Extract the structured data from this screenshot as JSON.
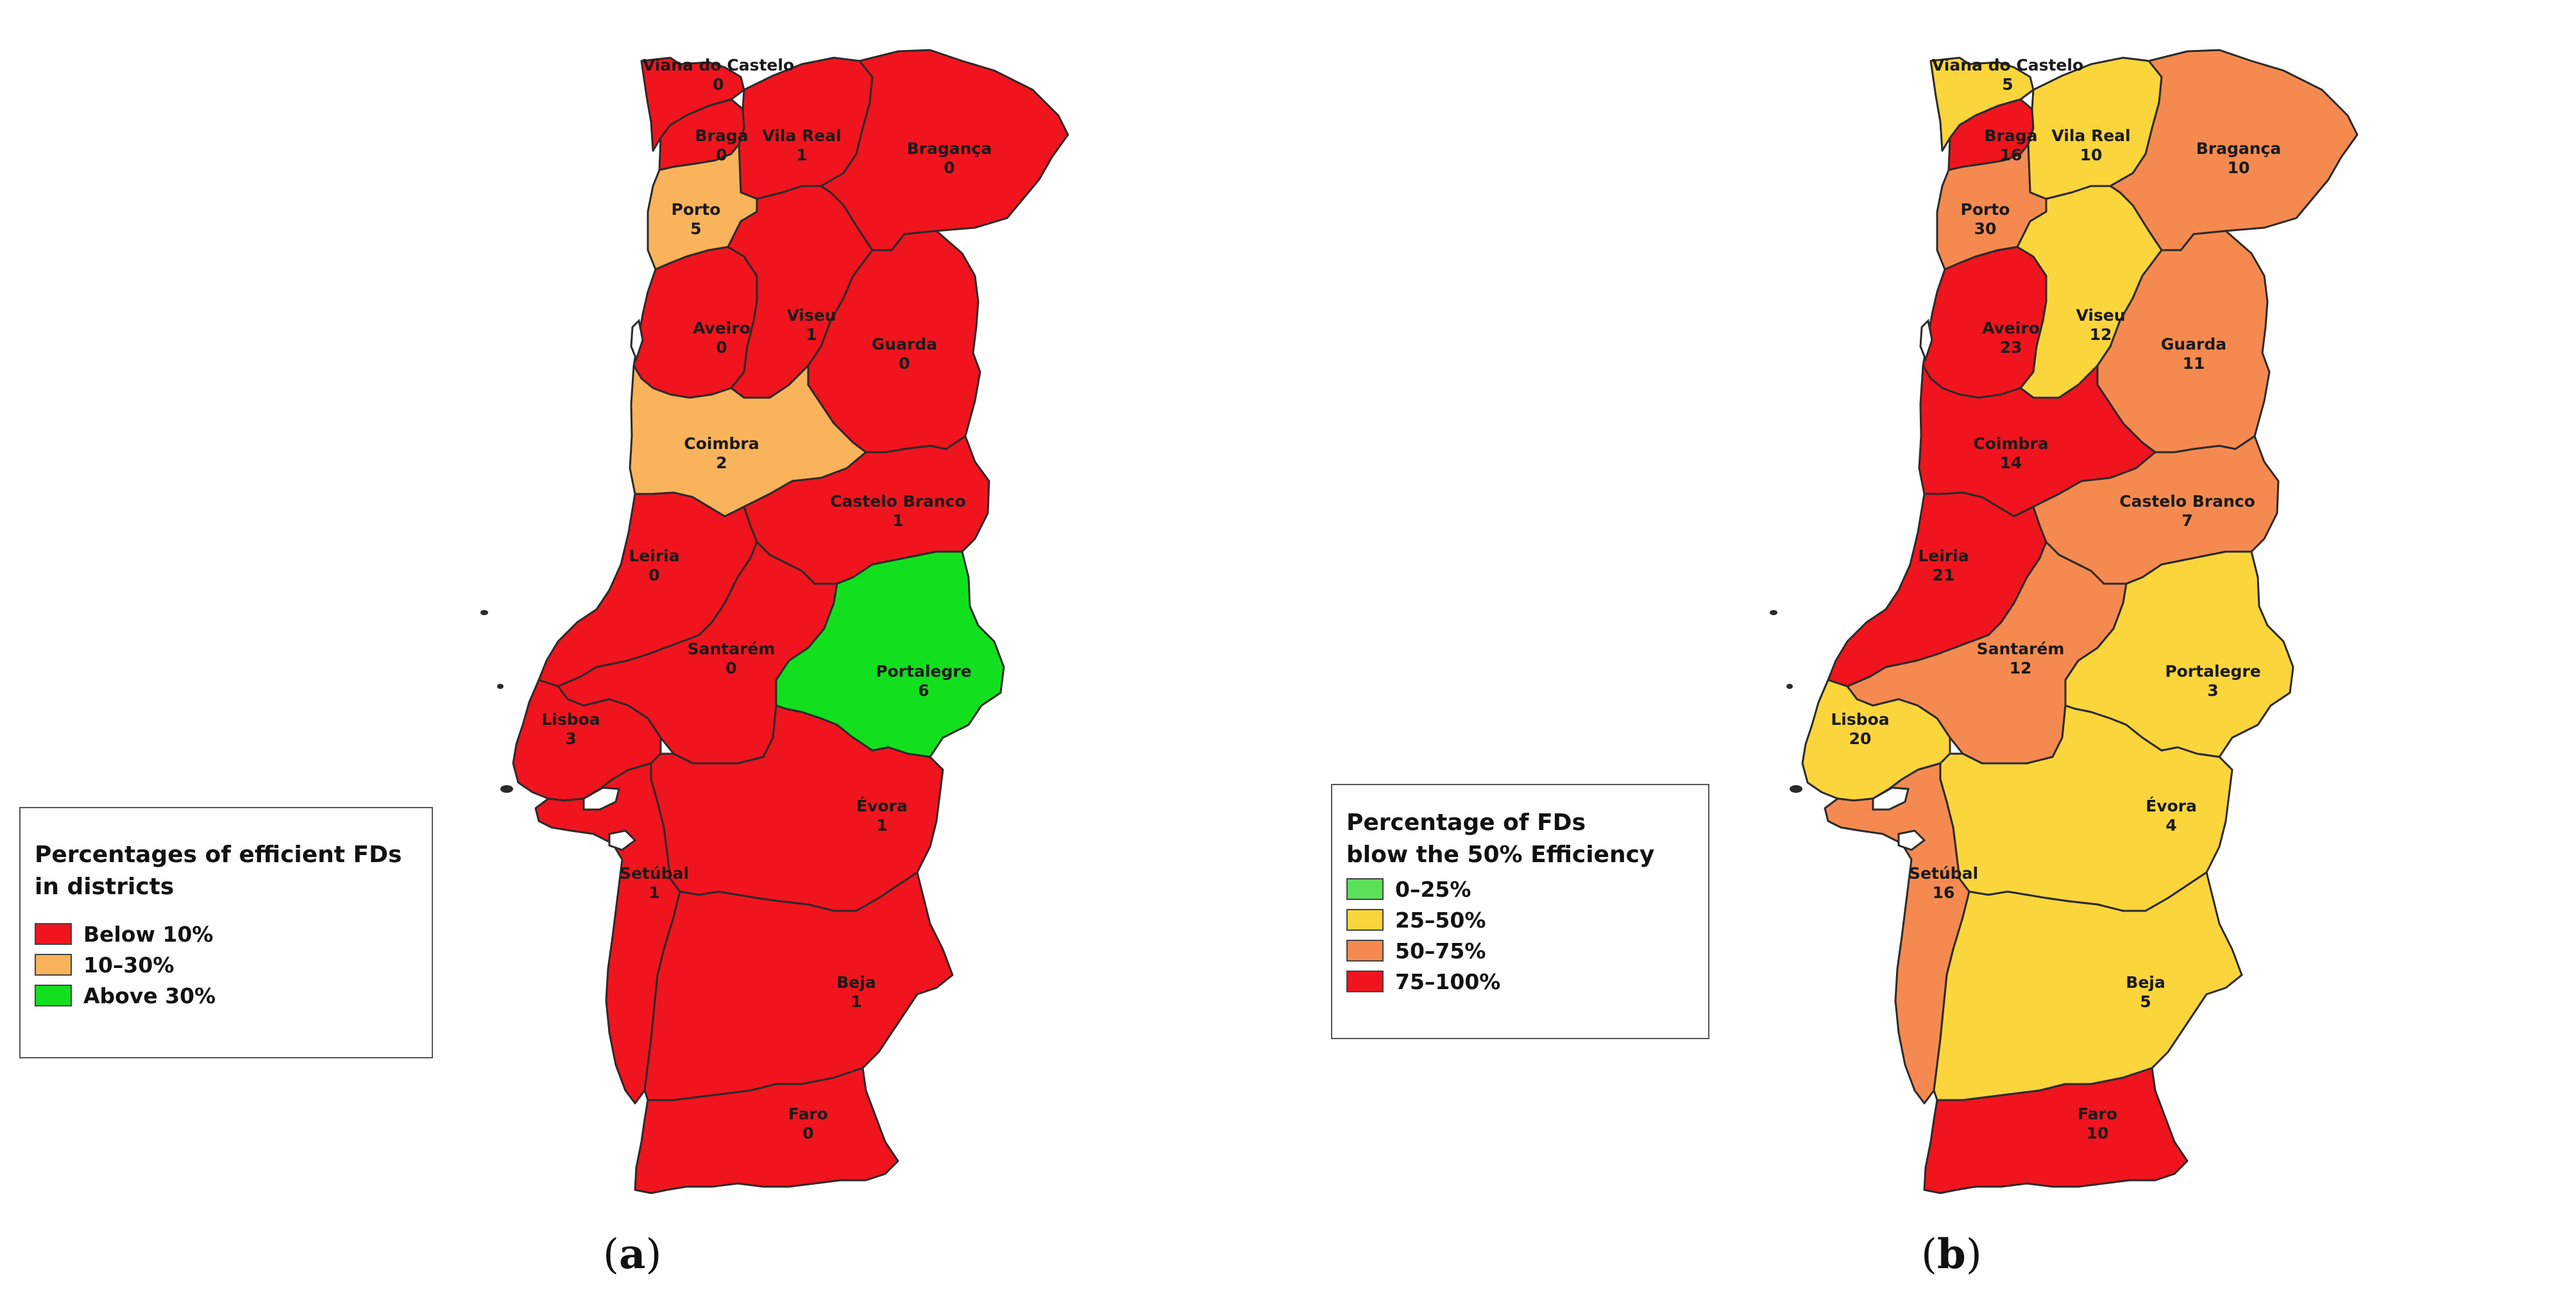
{
  "panels": [
    {
      "id": "a",
      "caption": {
        "open": "(",
        "letter": "a",
        "close": ")"
      },
      "legend": {
        "title_lines": [
          "Percentages of efficient FDs",
          "in districts"
        ],
        "items": [
          {
            "label": "Below 10%",
            "color": "#f0141e"
          },
          {
            "label": "10–30%",
            "color": "#f9b35a"
          },
          {
            "label": "Above 30%",
            "color": "#12e01e"
          }
        ]
      },
      "districts": [
        {
          "name": "Viana do Castelo",
          "value": "0",
          "color": "#f0141e"
        },
        {
          "name": "Braga",
          "value": "0",
          "color": "#f0141e"
        },
        {
          "name": "Vila Real",
          "value": "1",
          "color": "#f0141e"
        },
        {
          "name": "Bragança",
          "value": "0",
          "color": "#f0141e"
        },
        {
          "name": "Porto",
          "value": "5",
          "color": "#f9b35a"
        },
        {
          "name": "Aveiro",
          "value": "0",
          "color": "#f0141e"
        },
        {
          "name": "Viseu",
          "value": "1",
          "color": "#f0141e"
        },
        {
          "name": "Guarda",
          "value": "0",
          "color": "#f0141e"
        },
        {
          "name": "Coimbra",
          "value": "2",
          "color": "#f9b35a"
        },
        {
          "name": "Castelo Branco",
          "value": "1",
          "color": "#f0141e"
        },
        {
          "name": "Leiria",
          "value": "0",
          "color": "#f0141e"
        },
        {
          "name": "Santarém",
          "value": "0",
          "color": "#f0141e"
        },
        {
          "name": "Portalegre",
          "value": "6",
          "color": "#12e01e"
        },
        {
          "name": "Lisboa",
          "value": "3",
          "color": "#f0141e"
        },
        {
          "name": "Évora",
          "value": "1",
          "color": "#f0141e"
        },
        {
          "name": "Setúbal",
          "value": "1",
          "color": "#f0141e"
        },
        {
          "name": "Beja",
          "value": "1",
          "color": "#f0141e"
        },
        {
          "name": "Faro",
          "value": "0",
          "color": "#f0141e"
        }
      ]
    },
    {
      "id": "b",
      "caption": {
        "open": "(",
        "letter": "b",
        "close": ")"
      },
      "legend": {
        "title_lines": [
          "Percentage of FDs",
          "blow the 50% Efficiency"
        ],
        "items": [
          {
            "label": "0–25%",
            "color": "#5be05a"
          },
          {
            "label": "25–50%",
            "color": "#fad53c"
          },
          {
            "label": "50–75%",
            "color": "#f48a50"
          },
          {
            "label": "75–100%",
            "color": "#f0141e"
          }
        ]
      },
      "districts": [
        {
          "name": "Viana do Castelo",
          "value": "5",
          "color": "#fad53c"
        },
        {
          "name": "Braga",
          "value": "16",
          "color": "#f0141e"
        },
        {
          "name": "Vila Real",
          "value": "10",
          "color": "#fad53c"
        },
        {
          "name": "Bragança",
          "value": "10",
          "color": "#f48a50"
        },
        {
          "name": "Porto",
          "value": "30",
          "color": "#f48a50"
        },
        {
          "name": "Aveiro",
          "value": "23",
          "color": "#f0141e"
        },
        {
          "name": "Viseu",
          "value": "12",
          "color": "#fad53c"
        },
        {
          "name": "Guarda",
          "value": "11",
          "color": "#f48a50"
        },
        {
          "name": "Coimbra",
          "value": "14",
          "color": "#f0141e"
        },
        {
          "name": "Castelo Branco",
          "value": "7",
          "color": "#f48a50"
        },
        {
          "name": "Leiria",
          "value": "21",
          "color": "#f0141e"
        },
        {
          "name": "Santarém",
          "value": "12",
          "color": "#f48a50"
        },
        {
          "name": "Portalegre",
          "value": "3",
          "color": "#fad53c"
        },
        {
          "name": "Lisboa",
          "value": "20",
          "color": "#fad53c"
        },
        {
          "name": "Évora",
          "value": "4",
          "color": "#fad53c"
        },
        {
          "name": "Setúbal",
          "value": "16",
          "color": "#f48a50"
        },
        {
          "name": "Beja",
          "value": "5",
          "color": "#fad53c"
        },
        {
          "name": "Faro",
          "value": "10",
          "color": "#f0141e"
        }
      ]
    }
  ]
}
